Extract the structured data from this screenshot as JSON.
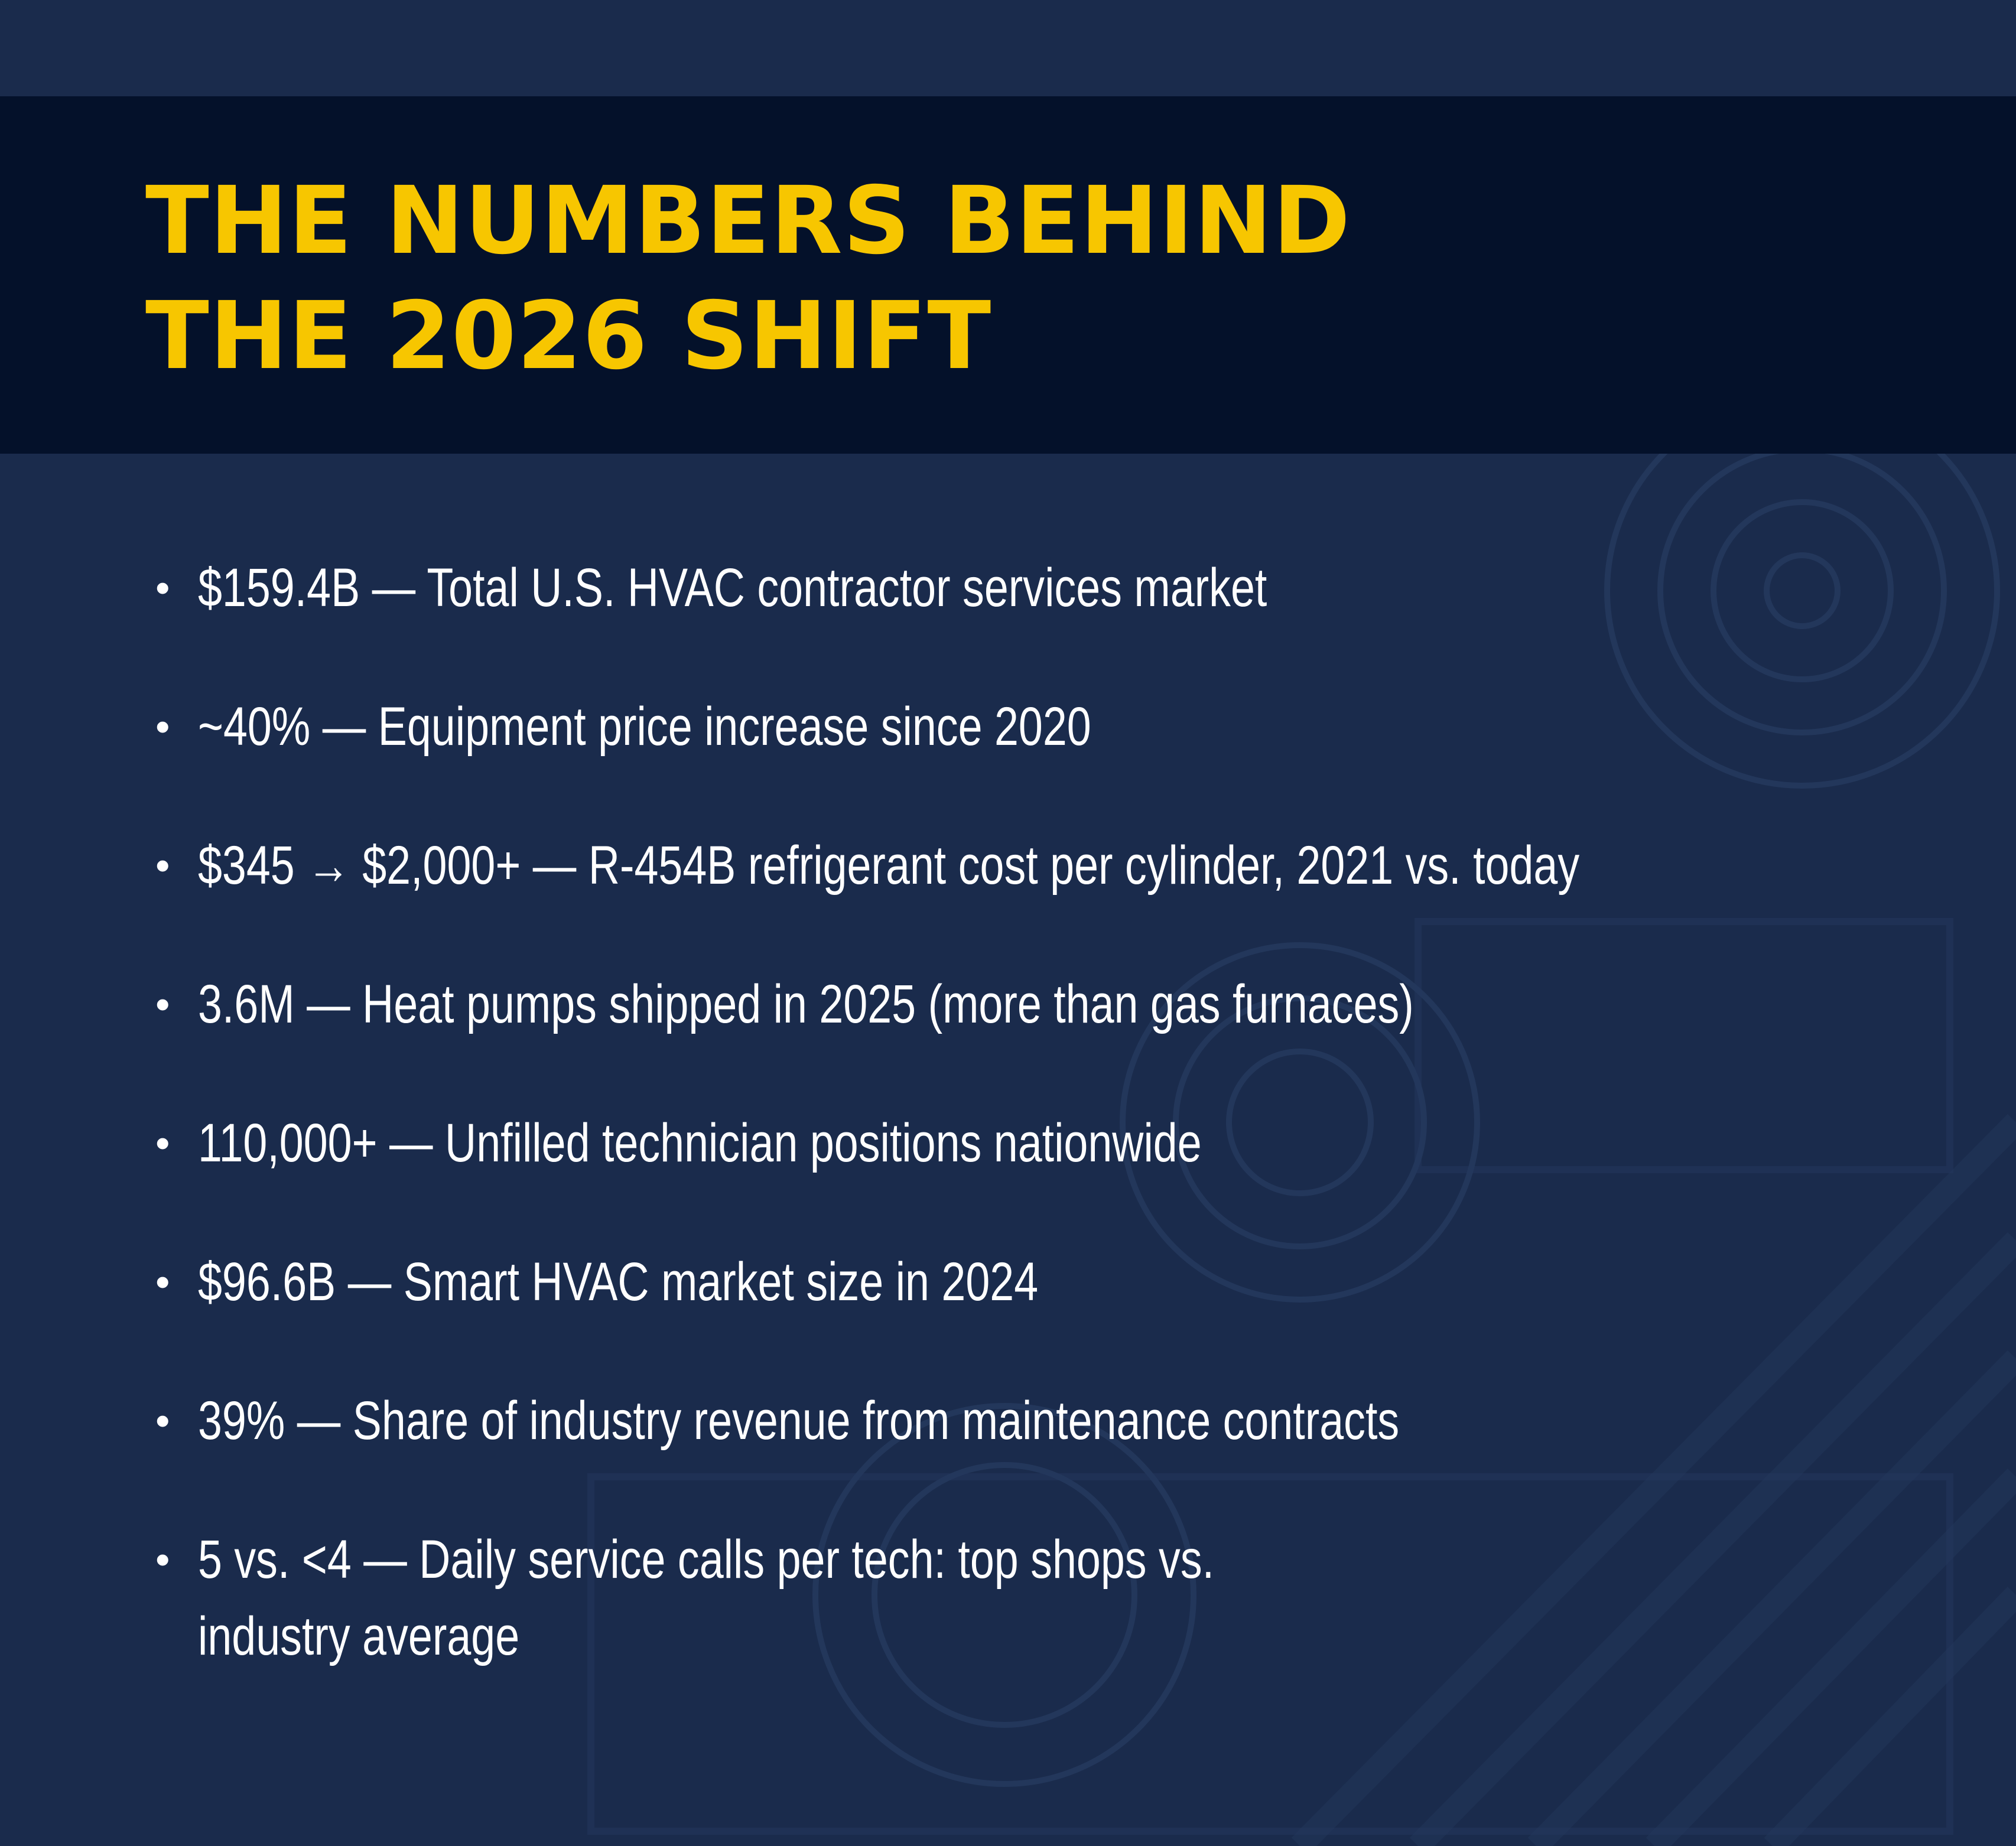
{
  "colors": {
    "background": "#1a2b4c",
    "title_band": "#04112a",
    "title_text": "#f7c600",
    "body_text": "#ffffff"
  },
  "title": {
    "line1": "THE NUMBERS BEHIND",
    "line2": "THE 2026 SHIFT"
  },
  "stats": [
    {
      "bullet": "•",
      "text": "$159.4B — Total U.S. HVAC contractor services market"
    },
    {
      "bullet": "•",
      "text": "~40% — Equipment price increase since 2020"
    },
    {
      "bullet": "•",
      "text": "$345 → $2,000+ — R-454B refrigerant cost per cylinder, 2021 vs. today"
    },
    {
      "bullet": "•",
      "text": "3.6M — Heat pumps shipped in 2025 (more than gas furnaces)"
    },
    {
      "bullet": "•",
      "text": "110,000+ — Unfilled technician positions nationwide"
    },
    {
      "bullet": "•",
      "text": "$96.6B — Smart HVAC market size in 2024"
    },
    {
      "bullet": "•",
      "text": "39% — Share of industry revenue from maintenance contracts"
    },
    {
      "bullet": "•",
      "text": "5 vs. <4 — Daily service calls per tech: top shops vs. industry average"
    }
  ]
}
